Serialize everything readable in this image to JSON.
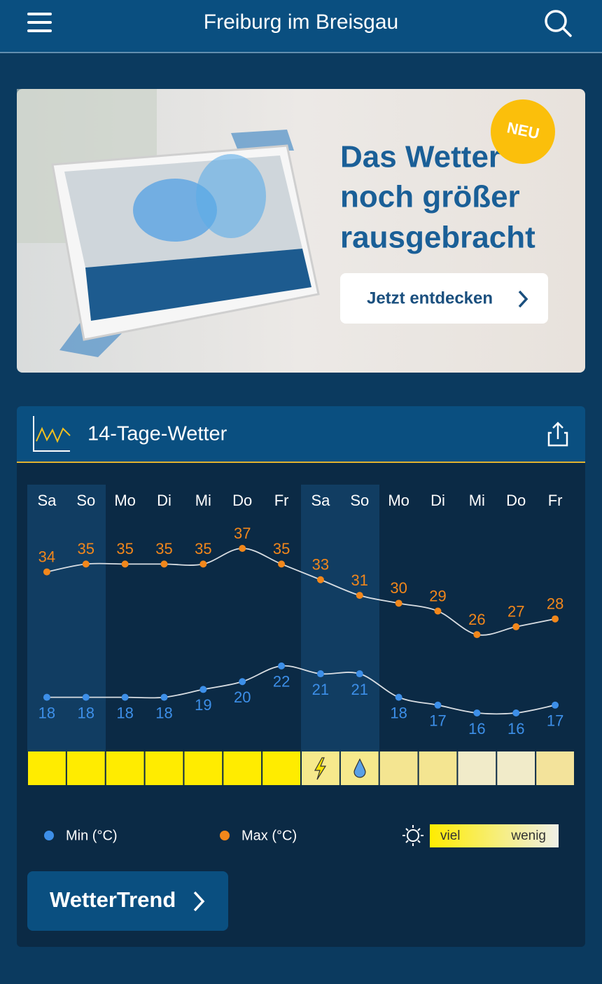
{
  "header": {
    "title": "Freiburg im Breisgau"
  },
  "banner": {
    "badge": "NEU",
    "headline": [
      "Das Wetter",
      "noch größer",
      "rausgebracht"
    ],
    "button": "Jetzt entdecken"
  },
  "widget": {
    "title": "14-Tage-Wetter",
    "chart_data": {
      "type": "line",
      "categories": [
        "Sa",
        "So",
        "Mo",
        "Di",
        "Mi",
        "Do",
        "Fr",
        "Sa",
        "So",
        "Mo",
        "Di",
        "Mi",
        "Do",
        "Fr"
      ],
      "series": [
        {
          "name": "Min (°C)",
          "color": "#3d8fe8",
          "values": [
            18,
            18,
            18,
            18,
            19,
            20,
            22,
            21,
            21,
            18,
            17,
            16,
            16,
            17
          ]
        },
        {
          "name": "Max (°C)",
          "color": "#f2871b",
          "values": [
            34,
            35,
            35,
            35,
            35,
            37,
            35,
            33,
            31,
            30,
            29,
            26,
            27,
            28
          ]
        }
      ],
      "sunshine_colors": [
        "#ffec00",
        "#ffec00",
        "#ffec00",
        "#ffec00",
        "#ffec00",
        "#ffec00",
        "#ffec00",
        "#f6e98c",
        "#f6e98c",
        "#f4e591",
        "#f4e591",
        "#f1ebc9",
        "#f1ebc9",
        "#f3e39b"
      ]
    },
    "sun_legend": {
      "high": "viel",
      "low": "wenig"
    },
    "button": "WetterTrend"
  }
}
